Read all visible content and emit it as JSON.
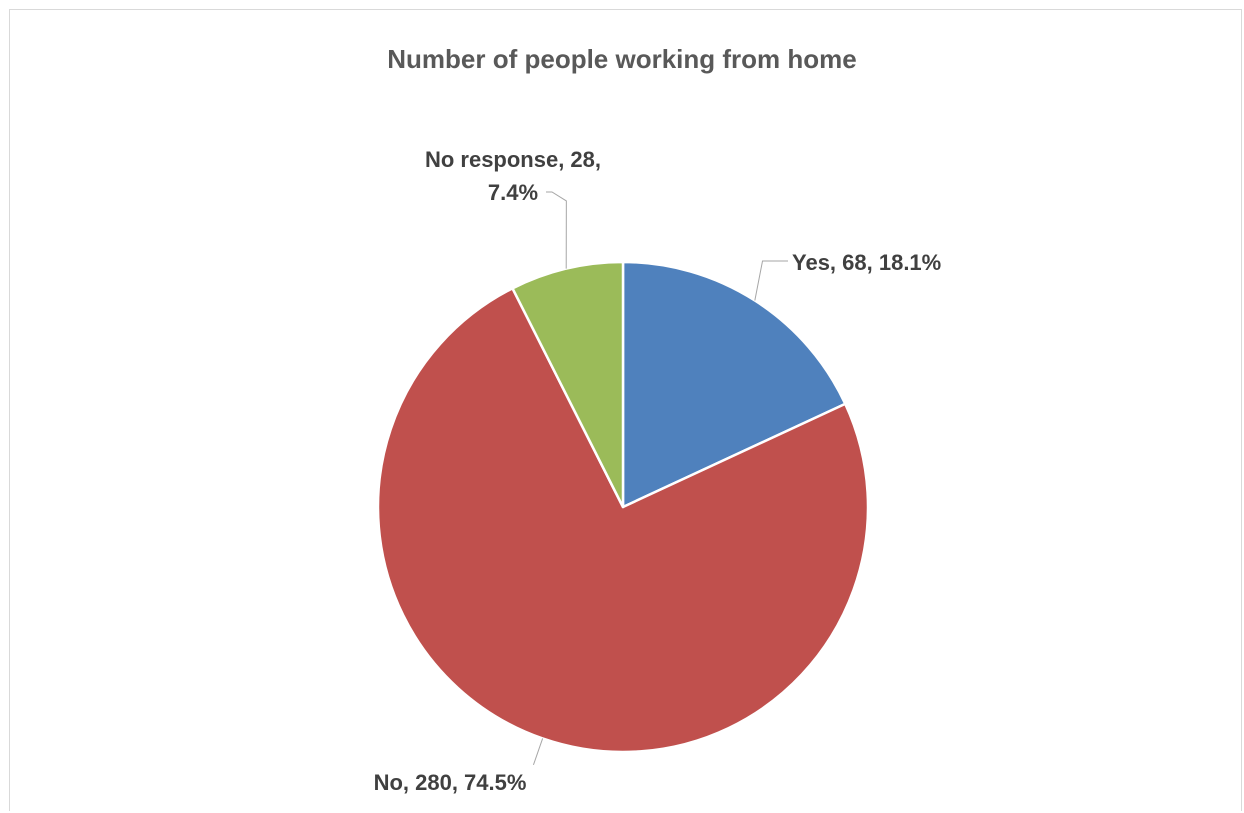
{
  "chart_data": {
    "type": "pie",
    "title": "Number of people working from home",
    "slices": [
      {
        "label": "Yes",
        "value": 68,
        "percent": "18.1%",
        "color": "#4f81bd",
        "label_lines": [
          "Yes, 68, 18.1%"
        ]
      },
      {
        "label": "No",
        "value": 280,
        "percent": "74.5%",
        "color": "#c0504d",
        "label_lines": [
          "No, 280, 74.5%"
        ]
      },
      {
        "label": "No response",
        "value": 28,
        "percent": "7.4%",
        "color": "#9bbb59",
        "label_lines": [
          "No response, 28,",
          "7.4%"
        ]
      }
    ],
    "legend": "none",
    "start_angle": "12 o'clock",
    "direction": "clockwise"
  }
}
